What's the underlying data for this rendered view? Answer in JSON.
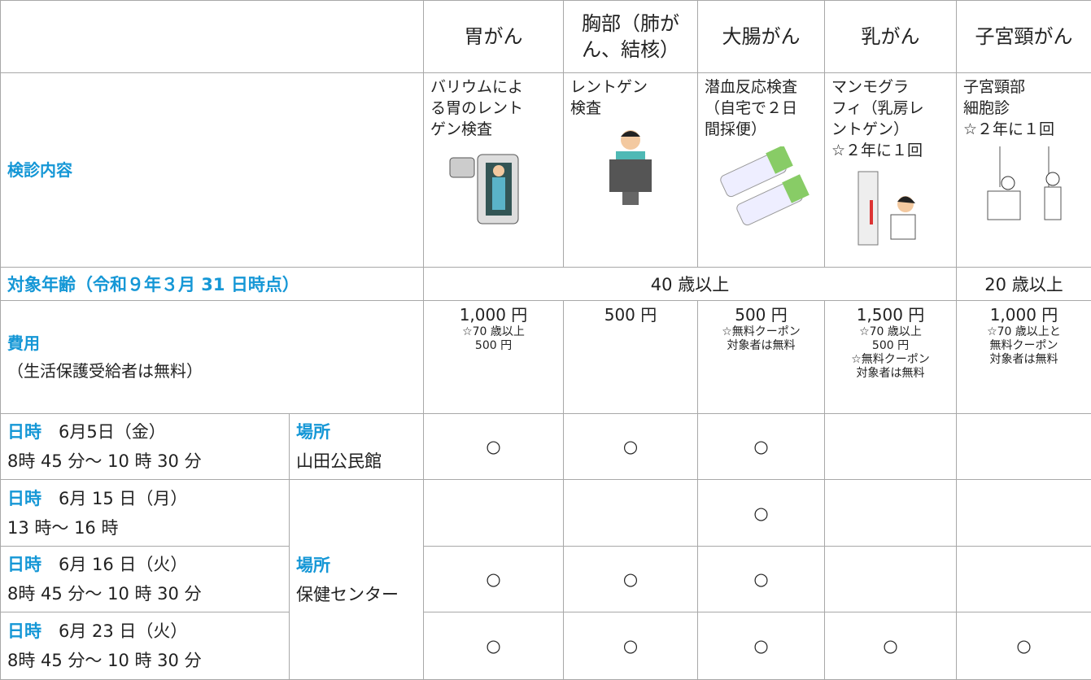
{
  "header": {
    "columns": [
      {
        "lines": [
          "胃がん"
        ]
      },
      {
        "lines": [
          "胸部（肺が",
          "ん、結核）"
        ]
      },
      {
        "lines": [
          "大腸がん"
        ]
      },
      {
        "lines": [
          "乳がん"
        ]
      },
      {
        "lines": [
          "子宮頸がん"
        ]
      }
    ]
  },
  "content": {
    "label": "検診内容",
    "columns": [
      {
        "lines": [
          "バリウムによ",
          "る胃のレント",
          "ゲン検査"
        ]
      },
      {
        "lines": [
          "レントゲン",
          "検査"
        ]
      },
      {
        "lines": [
          "潜血反応検査",
          "（自宅で２日",
          "間採便）"
        ]
      },
      {
        "lines": [
          "マンモグラ",
          "フィ（乳房レ",
          "ントゲン）",
          "☆２年に１回"
        ]
      },
      {
        "lines": [
          "子宮頸部",
          "細胞診",
          "☆２年に１回"
        ]
      }
    ]
  },
  "age": {
    "label": "対象年齢（令和９年３月 31 日時点）",
    "values": [
      "40 歳以上",
      "20 歳以上"
    ]
  },
  "cost": {
    "label": "費用",
    "sublabel": "（生活保護受給者は無料）",
    "columns": [
      {
        "price": "1,000 円",
        "notes": [
          "☆70 歳以上",
          "500 円"
        ]
      },
      {
        "price": "500 円"
      },
      {
        "price": "500 円",
        "notes": [
          "☆無料クーポン",
          "対象者は無料"
        ]
      },
      {
        "price": "1,500 円",
        "notes": [
          "☆70 歳以上",
          "500 円",
          "☆無料クーポン",
          "対象者は無料"
        ]
      },
      {
        "price": "1,000 円",
        "notes": [
          "☆70 歳以上と",
          "無料クーポン",
          "対象者は無料"
        ]
      }
    ]
  },
  "schedule": [
    {
      "place_label": "場所",
      "place": "山田公民館",
      "sessions": [
        {
          "date_label": "日時",
          "date": "6月5日（金）",
          "time": "8時 45 分～ 10 時 30 分",
          "marks": [
            "○",
            "○",
            "○",
            null,
            null
          ]
        }
      ]
    },
    {
      "place_label": "場所",
      "place": "保健センター",
      "sessions": [
        {
          "date_label": "日時",
          "date": "6月 15 日（月）",
          "time": "13 時～ 16 時",
          "marks": [
            null,
            null,
            "○",
            null,
            null
          ]
        },
        {
          "date_label": "日時",
          "date": "6月 16 日（火）",
          "time": "8時 45 分～ 10 時 30 分",
          "marks": [
            "○",
            "○",
            "○",
            null,
            null
          ]
        },
        {
          "date_label": "日時",
          "date": "6月 23 日（火）",
          "time": "8時 45 分～ 10 時 30 分",
          "marks": [
            "○",
            "○",
            "○",
            "○",
            "○"
          ]
        }
      ]
    }
  ]
}
